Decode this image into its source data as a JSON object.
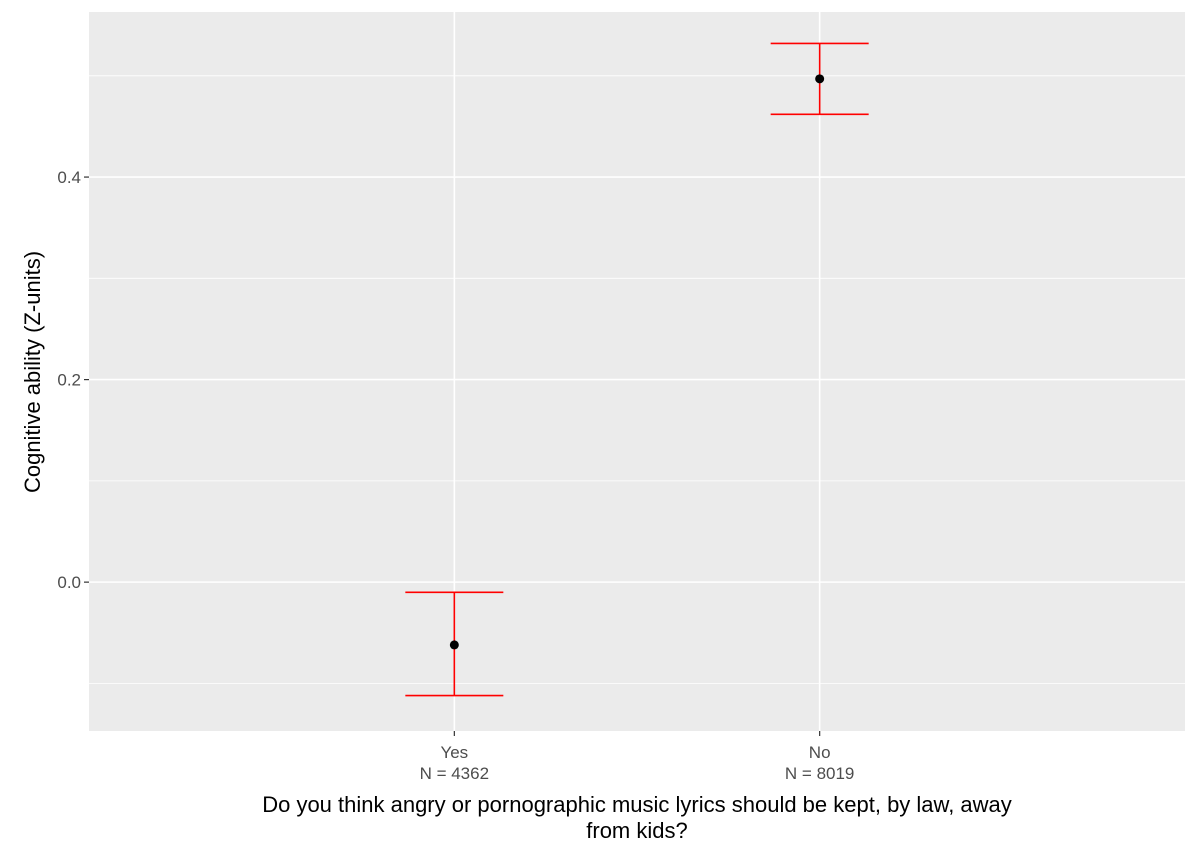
{
  "chart_data": {
    "type": "scatter",
    "subtype": "point-with-errorbars",
    "title": "",
    "xlabel_lines": [
      "Do you think angry or pornographic music lyrics should be kept, by law, away",
      "from kids?"
    ],
    "ylabel": "Cognitive ability (Z-units)",
    "categories": [
      {
        "label": "Yes",
        "n_label": "N = 4362"
      },
      {
        "label": "No",
        "n_label": "N = 8019"
      }
    ],
    "points": [
      {
        "category": "Yes",
        "y": -0.062,
        "ymin": -0.112,
        "ymax": -0.01
      },
      {
        "category": "No",
        "y": 0.497,
        "ymin": 0.462,
        "ymax": 0.532
      }
    ],
    "ylim": [
      -0.147,
      0.563
    ],
    "yticks": [
      0.0,
      0.2,
      0.4
    ],
    "ytick_labels": [
      "0.0",
      "0.2",
      "0.4"
    ],
    "yminor": [
      -0.1,
      0.1,
      0.3,
      0.5
    ],
    "grid": true,
    "legend": "none",
    "colors": {
      "panel_background": "#ebebeb",
      "grid": "#ffffff",
      "errorbar": "#ff0000",
      "point": "#000000",
      "tick_label": "#4d4d4d",
      "axis_title": "#000000"
    }
  }
}
